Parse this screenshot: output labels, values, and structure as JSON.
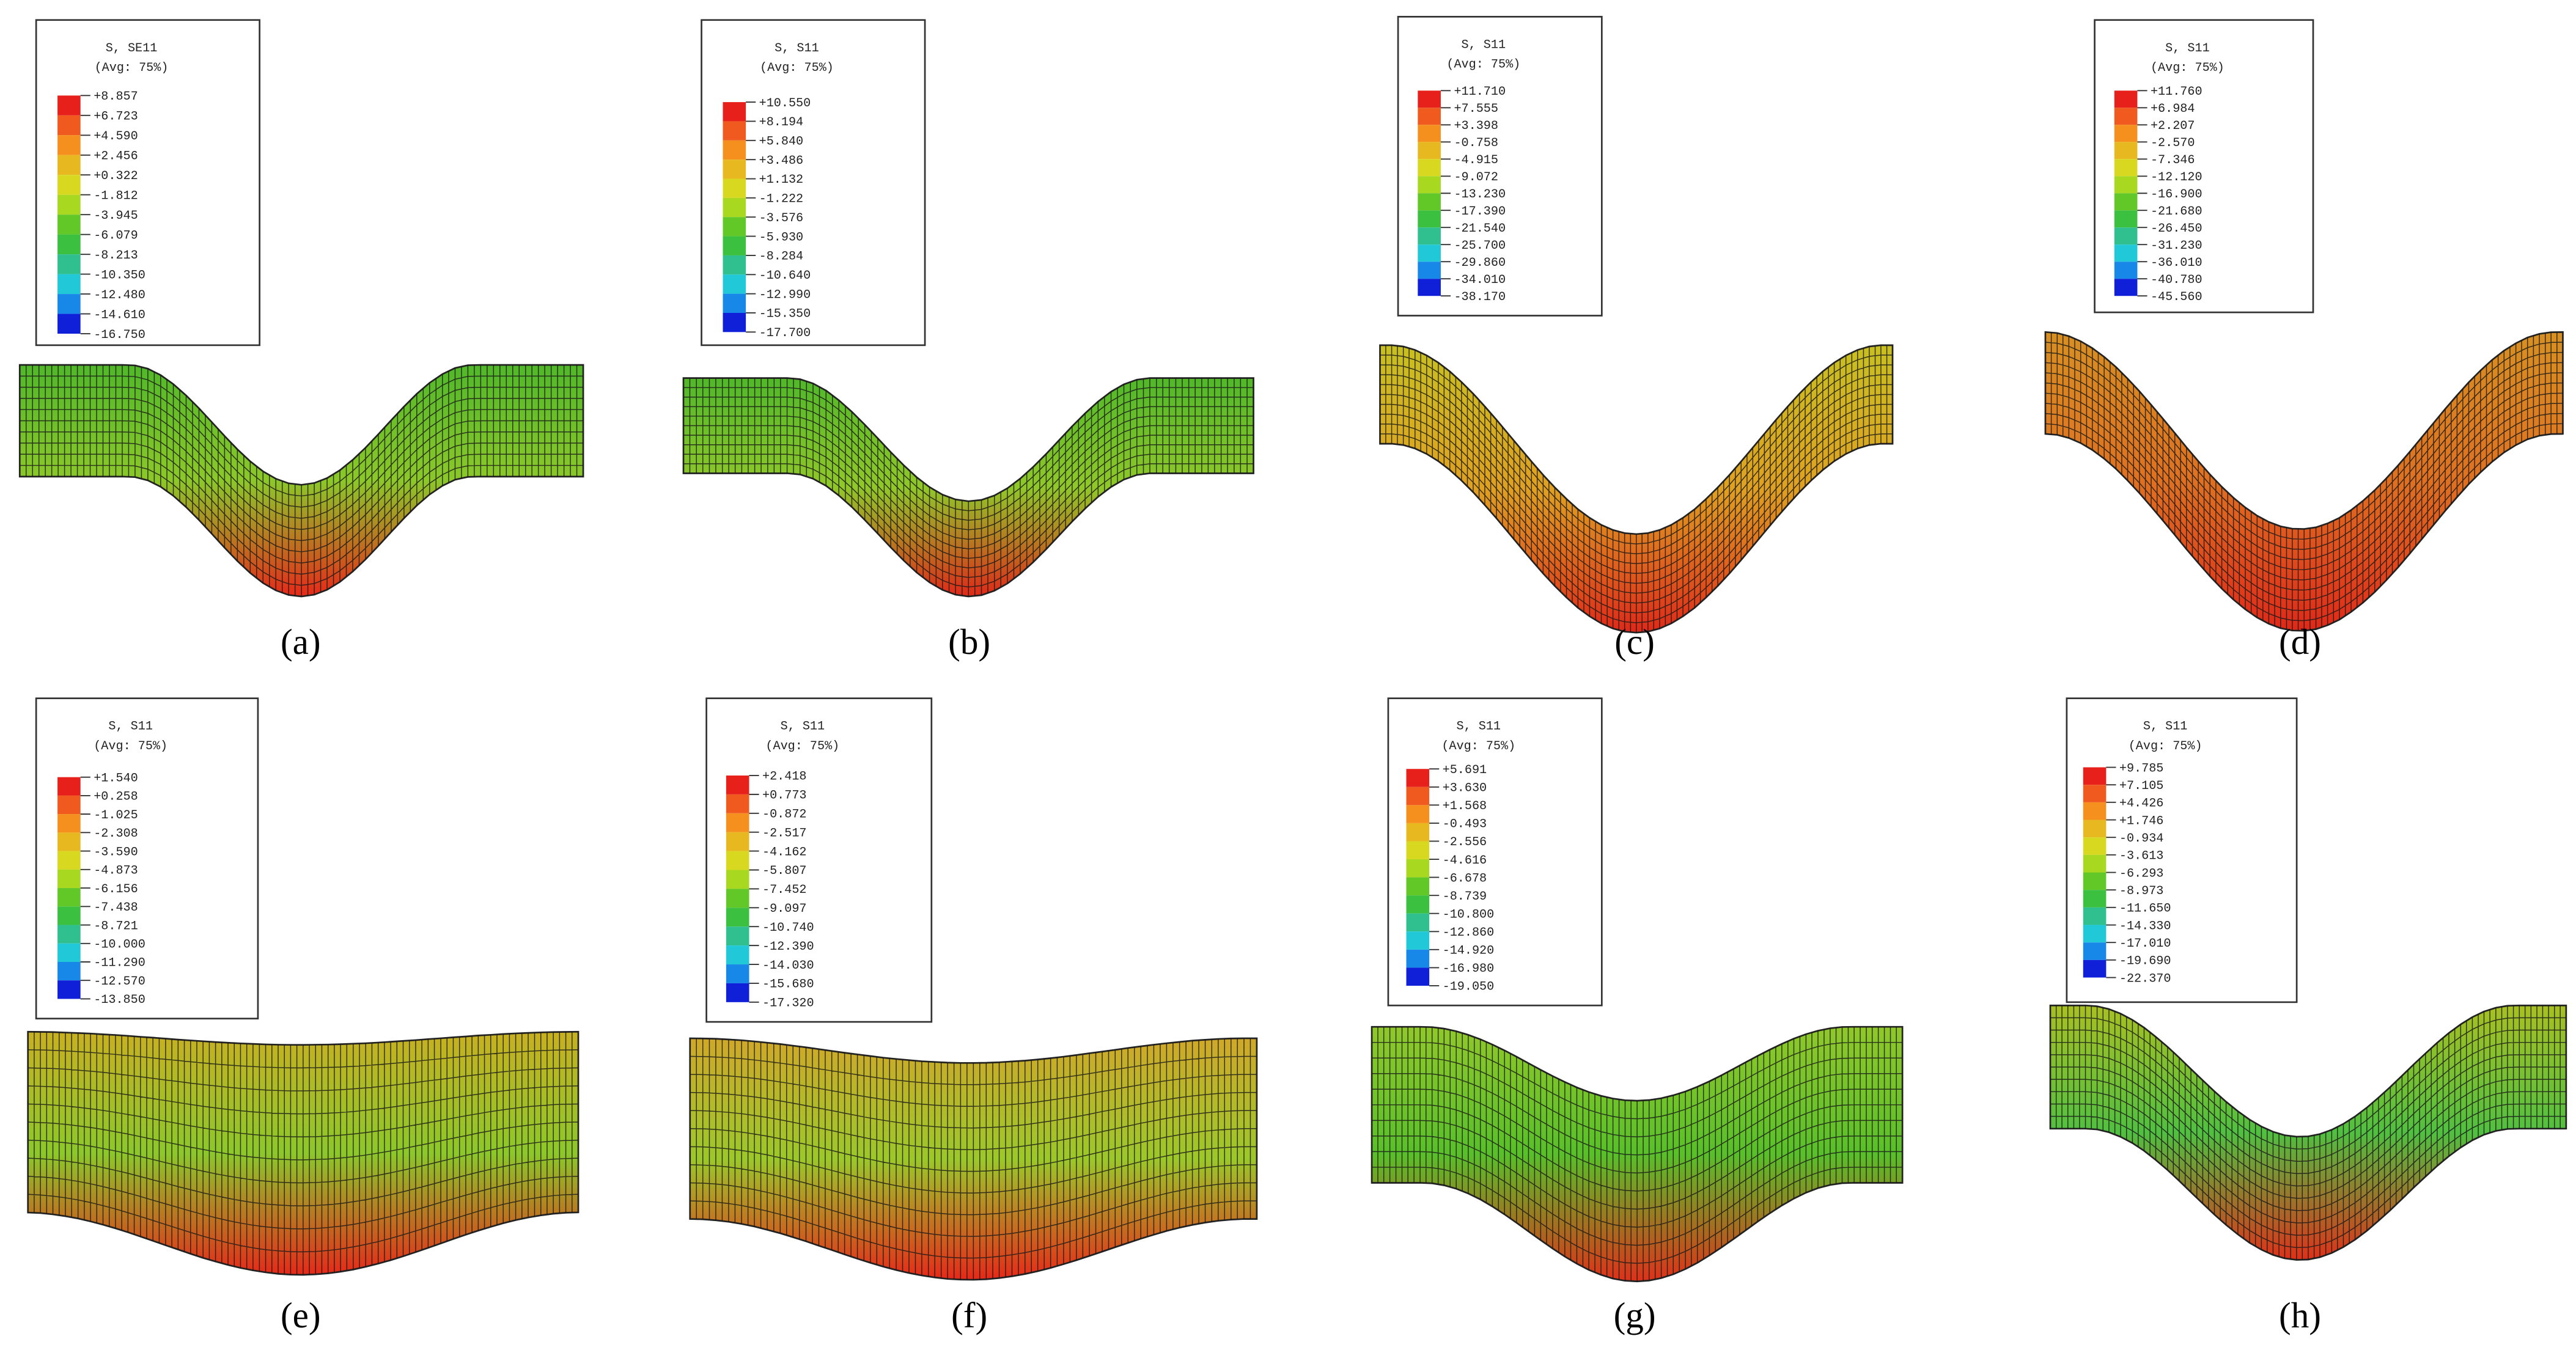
{
  "panels": [
    {
      "caption": "(a)",
      "legend_title": "S, SE11",
      "legend_subtitle": "(Avg: 75%)",
      "levels": [
        "+8.857",
        "+6.723",
        "+4.590",
        "+2.456",
        "+0.322",
        "-1.812",
        "-3.945",
        "-6.079",
        "-8.213",
        "-10.350",
        "-12.480",
        "-14.610",
        "-16.750"
      ]
    },
    {
      "caption": "(b)",
      "legend_title": "S, S11",
      "legend_subtitle": "(Avg: 75%)",
      "levels": [
        "+10.550",
        "+8.194",
        "+5.840",
        "+3.486",
        "+1.132",
        "-1.222",
        "-3.576",
        "-5.930",
        "-8.284",
        "-10.640",
        "-12.990",
        "-15.350",
        "-17.700"
      ]
    },
    {
      "caption": "(c)",
      "legend_title": "S, S11",
      "legend_subtitle": "(Avg: 75%)",
      "levels": [
        "+11.710",
        "+7.555",
        "+3.398",
        "-0.758",
        "-4.915",
        "-9.072",
        "-13.230",
        "-17.390",
        "-21.540",
        "-25.700",
        "-29.860",
        "-34.010",
        "-38.170"
      ]
    },
    {
      "caption": "(d)",
      "legend_title": "S, S11",
      "legend_subtitle": "(Avg: 75%)",
      "levels": [
        "+11.760",
        "+6.984",
        "+2.207",
        "-2.570",
        "-7.346",
        "-12.120",
        "-16.900",
        "-21.680",
        "-26.450",
        "-31.230",
        "-36.010",
        "-40.780",
        "-45.560"
      ]
    },
    {
      "caption": "(e)",
      "legend_title": "S, S11",
      "legend_subtitle": "(Avg: 75%)",
      "levels": [
        "+1.540",
        "+0.258",
        "-1.025",
        "-2.308",
        "-3.590",
        "-4.873",
        "-6.156",
        "-7.438",
        "-8.721",
        "-10.000",
        "-11.290",
        "-12.570",
        "-13.850"
      ]
    },
    {
      "caption": "(f)",
      "legend_title": "S, S11",
      "legend_subtitle": "(Avg: 75%)",
      "levels": [
        "+2.418",
        "+0.773",
        "-0.872",
        "-2.517",
        "-4.162",
        "-5.807",
        "-7.452",
        "-9.097",
        "-10.740",
        "-12.390",
        "-14.030",
        "-15.680",
        "-17.320"
      ]
    },
    {
      "caption": "(g)",
      "legend_title": "S, S11",
      "legend_subtitle": "(Avg: 75%)",
      "levels": [
        "+5.691",
        "+3.630",
        "+1.568",
        "-0.493",
        "-2.556",
        "-4.616",
        "-6.678",
        "-8.739",
        "-10.800",
        "-12.860",
        "-14.920",
        "-16.980",
        "-19.050"
      ]
    },
    {
      "caption": "(h)",
      "legend_title": "S, S11",
      "legend_subtitle": "(Avg: 75%)",
      "levels": [
        "+9.785",
        "+7.105",
        "+4.426",
        "+1.746",
        "-0.934",
        "-3.613",
        "-6.293",
        "-8.973",
        "-11.650",
        "-14.330",
        "-17.010",
        "-19.690",
        "-22.370"
      ]
    }
  ]
}
